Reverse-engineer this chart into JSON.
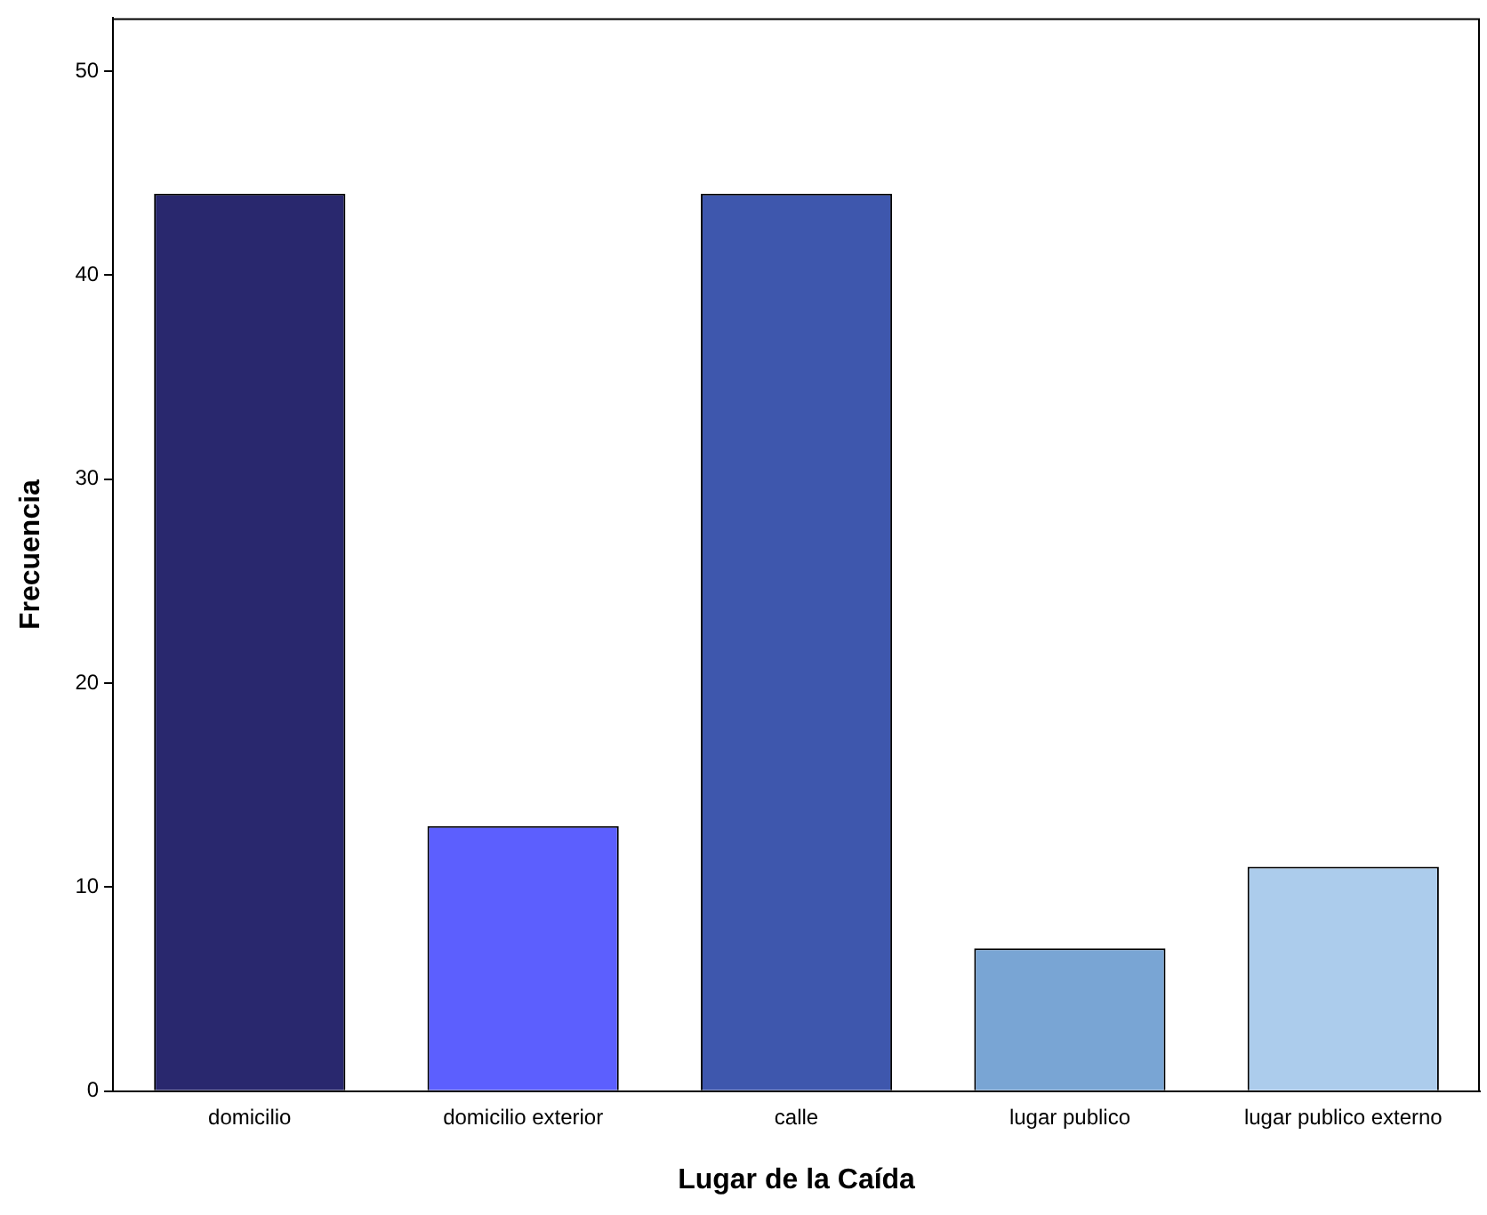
{
  "chart_data": {
    "type": "bar",
    "xlabel": "Lugar de la Caída",
    "ylabel": "Frecuencia",
    "categories": [
      "domicilio",
      "domicilio exterior",
      "calle",
      "lugar publico",
      "lugar publico externo"
    ],
    "values": [
      44,
      13,
      44,
      7,
      11
    ],
    "colors": [
      "#29286e",
      "#5c5ffe",
      "#3e57ad",
      "#79a5d4",
      "#acccec"
    ],
    "ylim": [
      0,
      52.6
    ],
    "yticks": [
      0,
      10,
      20,
      30,
      40,
      50
    ],
    "grid": false,
    "legend": false
  }
}
